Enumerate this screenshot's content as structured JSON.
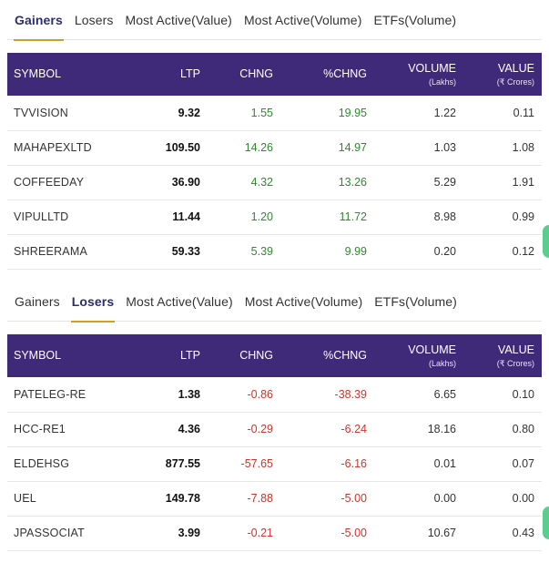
{
  "gainers": {
    "tabs": [
      {
        "label": "Gainers",
        "active": true
      },
      {
        "label": "Losers",
        "active": false
      },
      {
        "label": "Most Active(Value)",
        "active": false
      },
      {
        "label": "Most Active(Volume)",
        "active": false
      },
      {
        "label": "ETFs(Volume)",
        "active": false
      }
    ],
    "headers": {
      "symbol": "SYMBOL",
      "ltp": "LTP",
      "chng": "CHNG",
      "pchng": "%CHNG",
      "volume": "VOLUME",
      "volume_unit": "(Lakhs)",
      "value": "VALUE",
      "value_unit": "(₹ Crores)"
    },
    "rows": [
      {
        "symbol": "TVVISION",
        "ltp": "9.32",
        "chng": "1.55",
        "pchng": "19.95",
        "volume": "1.22",
        "value": "0.11"
      },
      {
        "symbol": "MAHAPEXLTD",
        "ltp": "109.50",
        "chng": "14.26",
        "pchng": "14.97",
        "volume": "1.03",
        "value": "1.08"
      },
      {
        "symbol": "COFFEEDAY",
        "ltp": "36.90",
        "chng": "4.32",
        "pchng": "13.26",
        "volume": "5.29",
        "value": "1.91"
      },
      {
        "symbol": "VIPULLTD",
        "ltp": "11.44",
        "chng": "1.20",
        "pchng": "11.72",
        "volume": "8.98",
        "value": "0.99"
      },
      {
        "symbol": "SHREERAMA",
        "ltp": "59.33",
        "chng": "5.39",
        "pchng": "9.99",
        "volume": "0.20",
        "value": "0.12"
      }
    ]
  },
  "losers": {
    "tabs": [
      {
        "label": "Gainers",
        "active": false
      },
      {
        "label": "Losers",
        "active": true
      },
      {
        "label": "Most Active(Value)",
        "active": false
      },
      {
        "label": "Most Active(Volume)",
        "active": false
      },
      {
        "label": "ETFs(Volume)",
        "active": false
      }
    ],
    "headers": {
      "symbol": "SYMBOL",
      "ltp": "LTP",
      "chng": "CHNG",
      "pchng": "%CHNG",
      "volume": "VOLUME",
      "volume_unit": "(Lakhs)",
      "value": "VALUE",
      "value_unit": "(₹ Crores)"
    },
    "rows": [
      {
        "symbol": "PATELEG-RE",
        "ltp": "1.38",
        "chng": "-0.86",
        "pchng": "-38.39",
        "volume": "6.65",
        "value": "0.10"
      },
      {
        "symbol": "HCC-RE1",
        "ltp": "4.36",
        "chng": "-0.29",
        "pchng": "-6.24",
        "volume": "18.16",
        "value": "0.80"
      },
      {
        "symbol": "ELDEHSG",
        "ltp": "877.55",
        "chng": "-57.65",
        "pchng": "-6.16",
        "volume": "0.01",
        "value": "0.07"
      },
      {
        "symbol": "UEL",
        "ltp": "149.78",
        "chng": "-7.88",
        "pchng": "-5.00",
        "volume": "0.00",
        "value": "0.00"
      },
      {
        "symbol": "JPASSOCIAT",
        "ltp": "3.99",
        "chng": "-0.21",
        "pchng": "-5.00",
        "volume": "10.67",
        "value": "0.43"
      }
    ]
  },
  "colors": {
    "header_bg": "#3f2a7a",
    "active_underline": "#c9a227",
    "positive": "#2e8b2e",
    "negative": "#d0342c",
    "edge_widget": "#3cc57a"
  }
}
